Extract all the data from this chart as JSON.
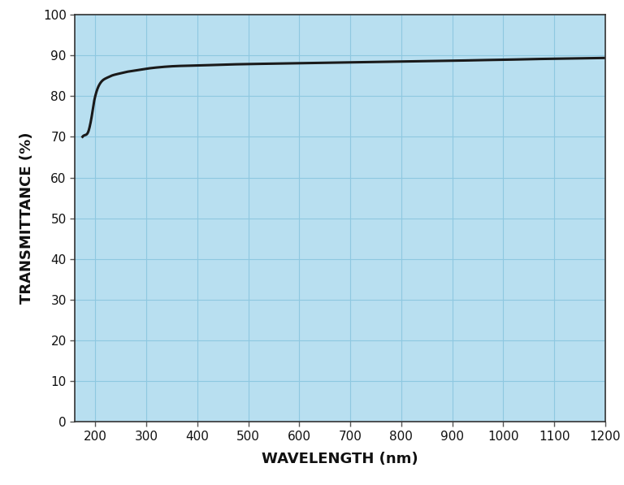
{
  "title": "",
  "xlabel": "WAVELENGTH (nm)",
  "ylabel": "TRANSMITTANCE (%)",
  "background_color": "#b8dff0",
  "grid_color": "#8ec8e0",
  "outer_bg": "#ffffff",
  "line_color": "#1a1a1a",
  "xlim": [
    160,
    1200
  ],
  "ylim": [
    0,
    100
  ],
  "xticks": [
    200,
    300,
    400,
    500,
    600,
    700,
    800,
    900,
    1000,
    1100,
    1200
  ],
  "yticks": [
    0,
    10,
    20,
    30,
    40,
    50,
    60,
    70,
    80,
    90,
    100
  ],
  "curve_x": [
    175,
    182,
    187,
    190,
    193,
    196,
    200,
    205,
    210,
    215,
    220,
    225,
    230,
    240,
    250,
    260,
    270,
    280,
    290,
    300,
    320,
    350,
    400,
    450,
    500,
    550,
    600,
    650,
    700,
    750,
    800,
    850,
    900,
    950,
    1000,
    1050,
    1100,
    1150,
    1200
  ],
  "curve_y": [
    70.0,
    70.5,
    71.5,
    73.0,
    75.0,
    77.5,
    80.0,
    82.0,
    83.2,
    83.9,
    84.3,
    84.6,
    84.9,
    85.3,
    85.6,
    85.9,
    86.1,
    86.3,
    86.5,
    86.7,
    87.0,
    87.3,
    87.5,
    87.7,
    87.85,
    87.95,
    88.05,
    88.15,
    88.25,
    88.35,
    88.45,
    88.55,
    88.65,
    88.8,
    88.9,
    89.05,
    89.15,
    89.25,
    89.35
  ],
  "xlabel_fontsize": 13,
  "ylabel_fontsize": 13,
  "tick_fontsize": 11,
  "line_width": 2.2,
  "label_fontweight": "bold"
}
